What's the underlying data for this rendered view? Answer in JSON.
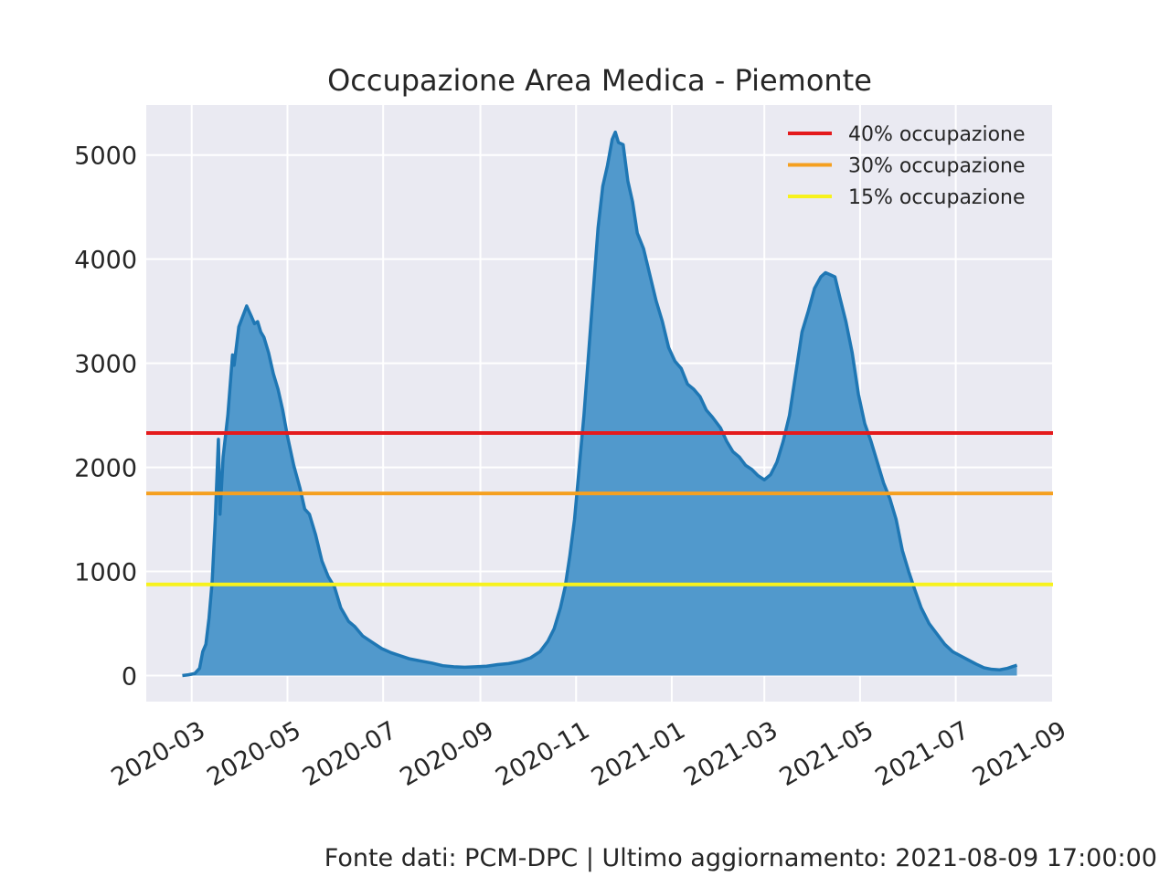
{
  "chart_data": {
    "type": "area",
    "title": "Occupazione Area Medica - Piemonte",
    "xlabel": "",
    "ylabel": "",
    "x_range": [
      "2020-02-01",
      "2021-09-01"
    ],
    "ylim": [
      -250,
      5480
    ],
    "x_ticks": [
      "2020-03",
      "2020-05",
      "2020-07",
      "2020-09",
      "2020-11",
      "2021-01",
      "2021-03",
      "2021-05",
      "2021-07",
      "2021-09"
    ],
    "y_ticks": [
      0,
      1000,
      2000,
      3000,
      4000,
      5000
    ],
    "grid": true,
    "legend_position": "top-right",
    "series": [
      {
        "color": "#1f77b4",
        "fill": "#5199cc",
        "points": [
          [
            "2020-02-24",
            0
          ],
          [
            "2020-02-28",
            8
          ],
          [
            "2020-03-03",
            20
          ],
          [
            "2020-03-06",
            70
          ],
          [
            "2020-03-08",
            230
          ],
          [
            "2020-03-10",
            300
          ],
          [
            "2020-03-12",
            550
          ],
          [
            "2020-03-14",
            900
          ],
          [
            "2020-03-16",
            1500
          ],
          [
            "2020-03-18",
            2270
          ],
          [
            "2020-03-19",
            1550
          ],
          [
            "2020-03-21",
            2100
          ],
          [
            "2020-03-24",
            2500
          ],
          [
            "2020-03-27",
            3080
          ],
          [
            "2020-03-28",
            2980
          ],
          [
            "2020-03-31",
            3350
          ],
          [
            "2020-04-02",
            3430
          ],
          [
            "2020-04-05",
            3550
          ],
          [
            "2020-04-08",
            3450
          ],
          [
            "2020-04-10",
            3380
          ],
          [
            "2020-04-12",
            3400
          ],
          [
            "2020-04-14",
            3300
          ],
          [
            "2020-04-16",
            3250
          ],
          [
            "2020-04-19",
            3100
          ],
          [
            "2020-04-22",
            2900
          ],
          [
            "2020-04-25",
            2750
          ],
          [
            "2020-04-28",
            2550
          ],
          [
            "2020-05-01",
            2300
          ],
          [
            "2020-05-05",
            2020
          ],
          [
            "2020-05-09",
            1800
          ],
          [
            "2020-05-12",
            1600
          ],
          [
            "2020-05-15",
            1550
          ],
          [
            "2020-05-19",
            1350
          ],
          [
            "2020-05-23",
            1100
          ],
          [
            "2020-05-27",
            950
          ],
          [
            "2020-05-31",
            850
          ],
          [
            "2020-06-04",
            650
          ],
          [
            "2020-06-09",
            520
          ],
          [
            "2020-06-13",
            470
          ],
          [
            "2020-06-18",
            380
          ],
          [
            "2020-06-24",
            320
          ],
          [
            "2020-06-30",
            260
          ],
          [
            "2020-07-06",
            220
          ],
          [
            "2020-07-12",
            190
          ],
          [
            "2020-07-18",
            160
          ],
          [
            "2020-07-25",
            140
          ],
          [
            "2020-08-01",
            120
          ],
          [
            "2020-08-08",
            95
          ],
          [
            "2020-08-15",
            85
          ],
          [
            "2020-08-22",
            80
          ],
          [
            "2020-08-29",
            85
          ],
          [
            "2020-09-05",
            90
          ],
          [
            "2020-09-12",
            105
          ],
          [
            "2020-09-19",
            115
          ],
          [
            "2020-09-26",
            135
          ],
          [
            "2020-10-03",
            170
          ],
          [
            "2020-10-09",
            230
          ],
          [
            "2020-10-14",
            330
          ],
          [
            "2020-10-18",
            450
          ],
          [
            "2020-10-22",
            650
          ],
          [
            "2020-10-25",
            850
          ],
          [
            "2020-10-28",
            1150
          ],
          [
            "2020-10-31",
            1500
          ],
          [
            "2020-11-03",
            2000
          ],
          [
            "2020-11-06",
            2500
          ],
          [
            "2020-11-09",
            3100
          ],
          [
            "2020-11-12",
            3700
          ],
          [
            "2020-11-15",
            4300
          ],
          [
            "2020-11-18",
            4700
          ],
          [
            "2020-11-21",
            4900
          ],
          [
            "2020-11-24",
            5150
          ],
          [
            "2020-11-26",
            5220
          ],
          [
            "2020-11-28",
            5120
          ],
          [
            "2020-12-01",
            5100
          ],
          [
            "2020-12-04",
            4750
          ],
          [
            "2020-12-07",
            4550
          ],
          [
            "2020-12-10",
            4250
          ],
          [
            "2020-12-14",
            4100
          ],
          [
            "2020-12-18",
            3850
          ],
          [
            "2020-12-22",
            3600
          ],
          [
            "2020-12-26",
            3400
          ],
          [
            "2020-12-30",
            3150
          ],
          [
            "2021-01-03",
            3020
          ],
          [
            "2021-01-07",
            2950
          ],
          [
            "2021-01-11",
            2800
          ],
          [
            "2021-01-15",
            2750
          ],
          [
            "2021-01-19",
            2680
          ],
          [
            "2021-01-23",
            2550
          ],
          [
            "2021-01-27",
            2480
          ],
          [
            "2021-02-01",
            2380
          ],
          [
            "2021-02-05",
            2250
          ],
          [
            "2021-02-09",
            2150
          ],
          [
            "2021-02-13",
            2100
          ],
          [
            "2021-02-17",
            2020
          ],
          [
            "2021-02-21",
            1980
          ],
          [
            "2021-02-25",
            1920
          ],
          [
            "2021-03-01",
            1880
          ],
          [
            "2021-03-05",
            1930
          ],
          [
            "2021-03-09",
            2050
          ],
          [
            "2021-03-13",
            2250
          ],
          [
            "2021-03-17",
            2500
          ],
          [
            "2021-03-21",
            2900
          ],
          [
            "2021-03-25",
            3300
          ],
          [
            "2021-03-29",
            3500
          ],
          [
            "2021-04-02",
            3720
          ],
          [
            "2021-04-06",
            3830
          ],
          [
            "2021-04-09",
            3870
          ],
          [
            "2021-04-12",
            3850
          ],
          [
            "2021-04-15",
            3830
          ],
          [
            "2021-04-18",
            3640
          ],
          [
            "2021-04-22",
            3400
          ],
          [
            "2021-04-26",
            3100
          ],
          [
            "2021-04-30",
            2700
          ],
          [
            "2021-05-04",
            2420
          ],
          [
            "2021-05-08",
            2250
          ],
          [
            "2021-05-12",
            2050
          ],
          [
            "2021-05-16",
            1850
          ],
          [
            "2021-05-20",
            1700
          ],
          [
            "2021-05-24",
            1500
          ],
          [
            "2021-05-28",
            1200
          ],
          [
            "2021-06-01",
            1000
          ],
          [
            "2021-06-05",
            820
          ],
          [
            "2021-06-09",
            650
          ],
          [
            "2021-06-14",
            500
          ],
          [
            "2021-06-19",
            400
          ],
          [
            "2021-06-24",
            300
          ],
          [
            "2021-06-29",
            230
          ],
          [
            "2021-07-04",
            190
          ],
          [
            "2021-07-09",
            150
          ],
          [
            "2021-07-14",
            110
          ],
          [
            "2021-07-19",
            75
          ],
          [
            "2021-07-24",
            60
          ],
          [
            "2021-07-29",
            55
          ],
          [
            "2021-08-03",
            70
          ],
          [
            "2021-08-06",
            85
          ],
          [
            "2021-08-09",
            100
          ]
        ]
      }
    ],
    "hlines": [
      {
        "label": "40% occupazione",
        "value": 2330,
        "color": "#e41a1c"
      },
      {
        "label": "30% occupazione",
        "value": 1750,
        "color": "#f5a020"
      },
      {
        "label": "15% occupazione",
        "value": 875,
        "color": "#f7f21c"
      }
    ],
    "colors": {
      "plot_bg": "#eaeaf2",
      "grid": "#ffffff",
      "text": "#262626"
    }
  },
  "footer": "Fonte dati: PCM-DPC | Ultimo aggiornamento: 2021-08-09 17:00:00"
}
